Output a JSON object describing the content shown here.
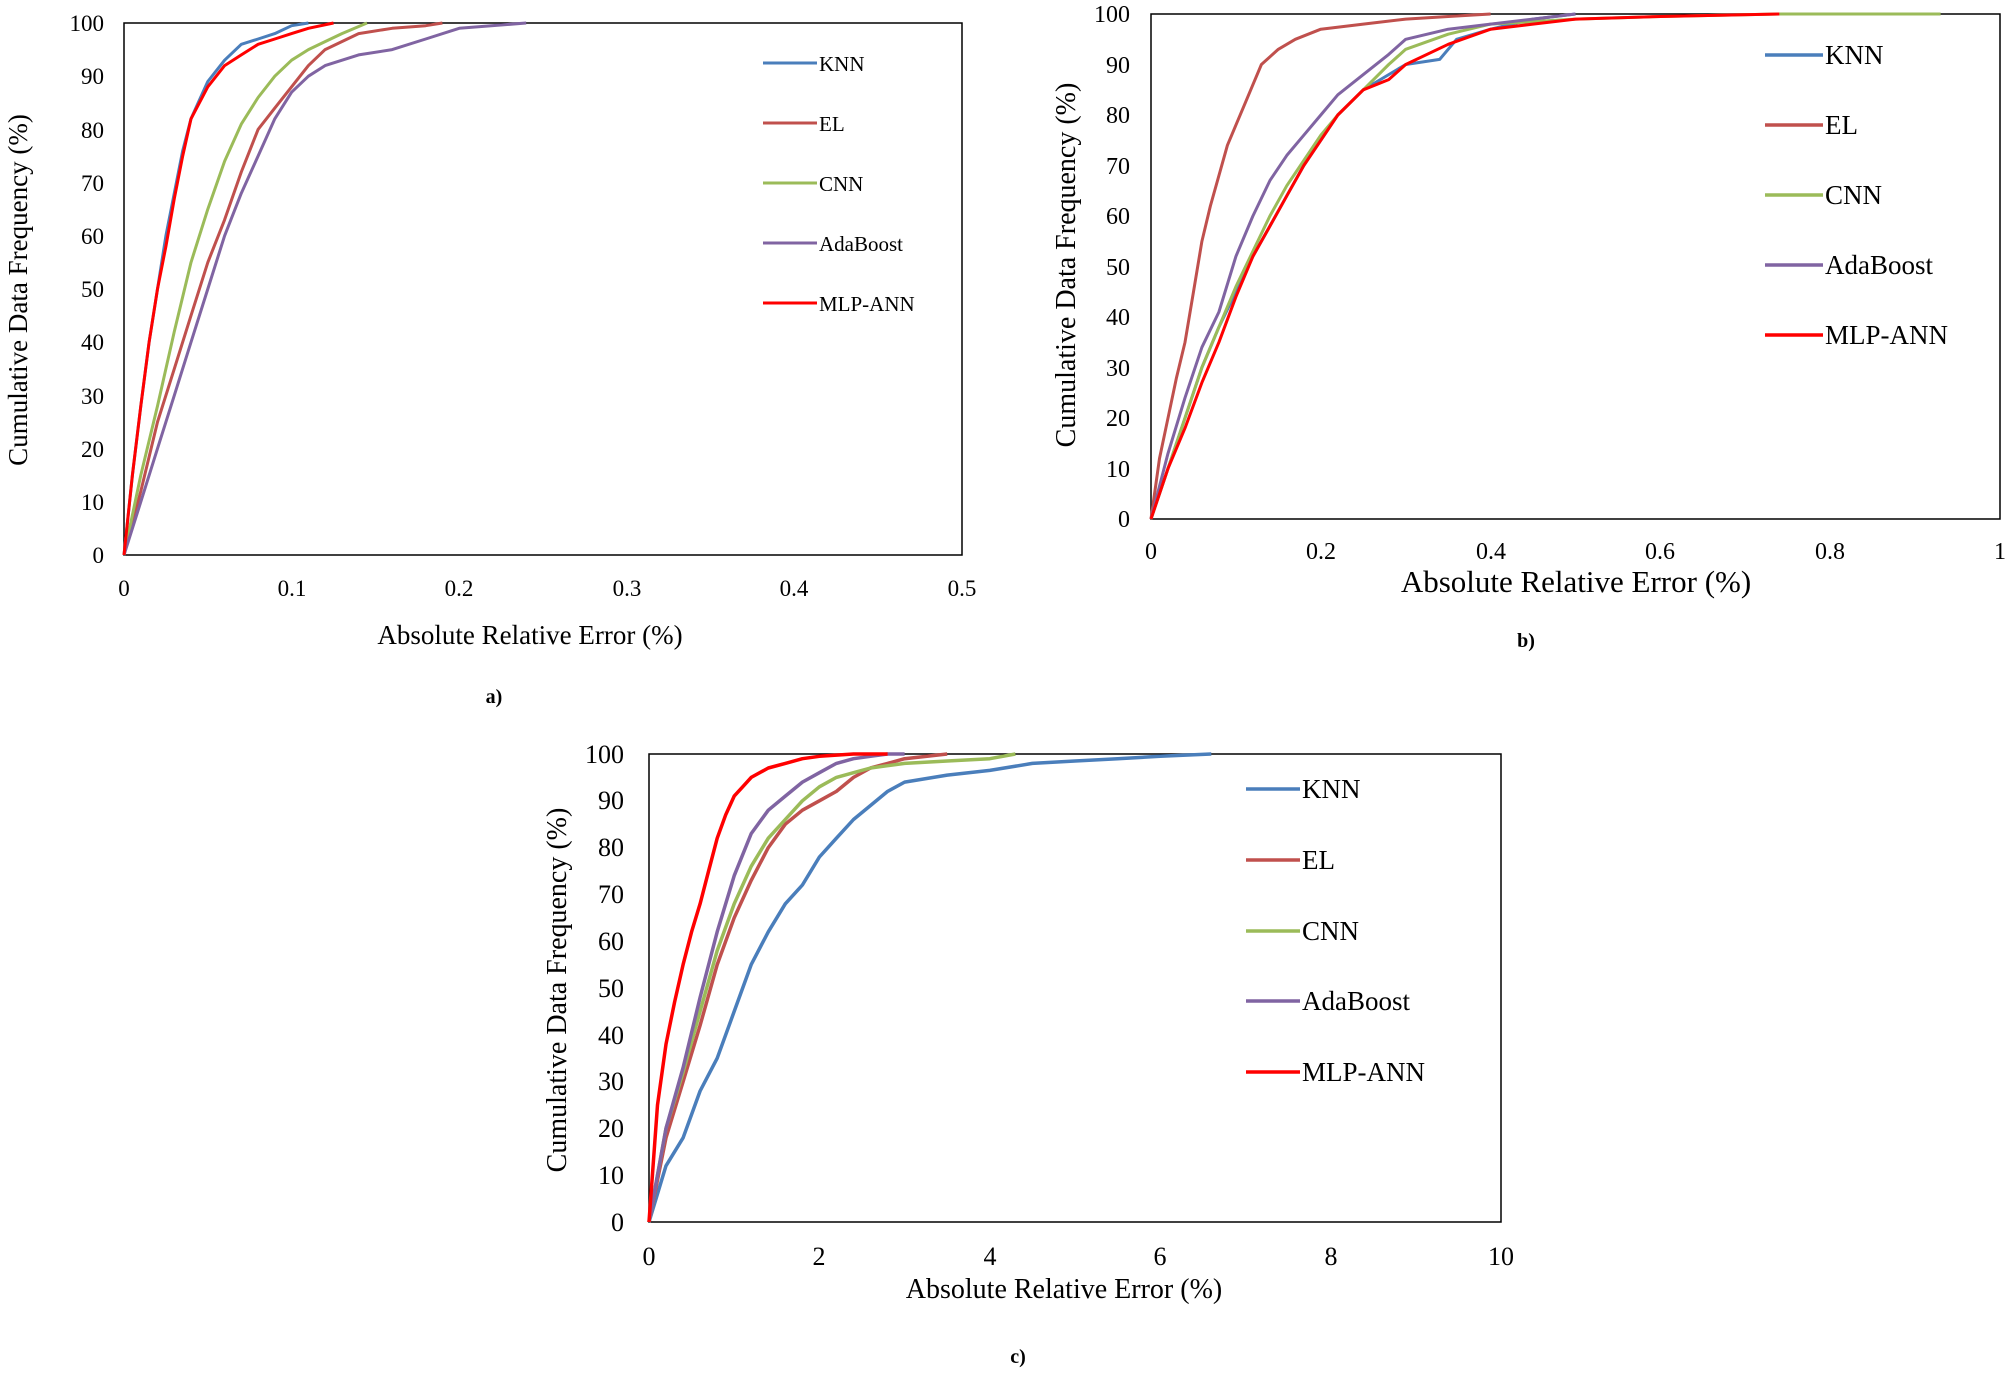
{
  "colors": {
    "KNN": "#4a7ebb",
    "EL": "#c0504d",
    "CNN": "#9bbb59",
    "AdaBoost": "#8064a2",
    "MLP-ANN": "#ff0000"
  },
  "chart_data": [
    {
      "id": "a",
      "type": "line",
      "panel_label": "a)",
      "title": "",
      "xlabel": "Absolute Relative Error (%)",
      "ylabel": "Cumulative Data Frequency (%)",
      "xlim": [
        0,
        0.5
      ],
      "ylim": [
        0,
        100
      ],
      "x_ticks": [
        "0",
        "0.1",
        "0.2",
        "0.3",
        "0.4",
        "0.5"
      ],
      "y_ticks": [
        "0",
        "10",
        "20",
        "30",
        "40",
        "50",
        "60",
        "70",
        "80",
        "90",
        "100"
      ],
      "legend": [
        "KNN",
        "EL",
        "CNN",
        "AdaBoost",
        "MLP-ANN"
      ],
      "series": [
        {
          "name": "KNN",
          "x": [
            0,
            0.005,
            0.01,
            0.015,
            0.02,
            0.025,
            0.03,
            0.035,
            0.04,
            0.05,
            0.06,
            0.07,
            0.08,
            0.09,
            0.1,
            0.11
          ],
          "y": [
            0,
            15,
            28,
            40,
            50,
            60,
            68,
            76,
            82,
            89,
            93,
            96,
            97,
            98,
            99.5,
            100
          ]
        },
        {
          "name": "EL",
          "x": [
            0,
            0.01,
            0.02,
            0.03,
            0.04,
            0.05,
            0.06,
            0.07,
            0.08,
            0.09,
            0.1,
            0.11,
            0.12,
            0.14,
            0.16,
            0.18,
            0.19
          ],
          "y": [
            0,
            12,
            25,
            35,
            45,
            55,
            63,
            72,
            80,
            84,
            88,
            92,
            95,
            98,
            99,
            99.5,
            100
          ]
        },
        {
          "name": "CNN",
          "x": [
            0,
            0.01,
            0.02,
            0.03,
            0.04,
            0.05,
            0.06,
            0.07,
            0.08,
            0.09,
            0.1,
            0.11,
            0.12,
            0.13,
            0.145
          ],
          "y": [
            0,
            15,
            28,
            42,
            55,
            65,
            74,
            81,
            86,
            90,
            93,
            95,
            96.5,
            98,
            100
          ]
        },
        {
          "name": "AdaBoost",
          "x": [
            0,
            0.01,
            0.02,
            0.03,
            0.04,
            0.05,
            0.06,
            0.07,
            0.08,
            0.09,
            0.1,
            0.11,
            0.12,
            0.14,
            0.16,
            0.18,
            0.2,
            0.24
          ],
          "y": [
            0,
            10,
            20,
            30,
            40,
            50,
            60,
            68,
            75,
            82,
            87,
            90,
            92,
            94,
            95,
            97,
            99,
            100
          ]
        },
        {
          "name": "MLP-ANN",
          "x": [
            0,
            0.005,
            0.01,
            0.015,
            0.02,
            0.025,
            0.03,
            0.035,
            0.04,
            0.05,
            0.06,
            0.07,
            0.08,
            0.09,
            0.1,
            0.11,
            0.125
          ],
          "y": [
            0,
            15,
            28,
            40,
            50,
            58,
            67,
            75,
            82,
            88,
            92,
            94,
            96,
            97,
            98,
            99,
            100
          ]
        }
      ]
    },
    {
      "id": "b",
      "type": "line",
      "panel_label": "b)",
      "title": "",
      "xlabel": "Absolute Relative Error (%)",
      "ylabel": "Cumulative Data Frequency (%)",
      "xlim": [
        0,
        1
      ],
      "ylim": [
        0,
        100
      ],
      "x_ticks": [
        "0",
        "0.2",
        "0.4",
        "0.6",
        "0.8",
        "1"
      ],
      "y_ticks": [
        "0",
        "10",
        "20",
        "30",
        "40",
        "50",
        "60",
        "70",
        "80",
        "90",
        "100"
      ],
      "legend": [
        "KNN",
        "EL",
        "CNN",
        "AdaBoost",
        "MLP-ANN"
      ],
      "series": [
        {
          "name": "KNN",
          "x": [
            0,
            0.02,
            0.04,
            0.06,
            0.08,
            0.1,
            0.12,
            0.14,
            0.16,
            0.18,
            0.2,
            0.22,
            0.25,
            0.28,
            0.3,
            0.34,
            0.36,
            0.4,
            0.45,
            0.5
          ],
          "y": [
            0,
            10,
            20,
            30,
            38,
            45,
            52,
            58,
            64,
            70,
            75,
            80,
            85,
            88,
            90,
            91,
            95,
            97,
            99,
            100
          ]
        },
        {
          "name": "EL",
          "x": [
            0,
            0.01,
            0.02,
            0.03,
            0.04,
            0.05,
            0.06,
            0.07,
            0.08,
            0.09,
            0.1,
            0.11,
            0.12,
            0.13,
            0.15,
            0.17,
            0.2,
            0.25,
            0.3,
            0.35,
            0.4
          ],
          "y": [
            0,
            12,
            20,
            28,
            35,
            45,
            55,
            62,
            68,
            74,
            78,
            82,
            86,
            90,
            93,
            95,
            97,
            98,
            99,
            99.5,
            100
          ]
        },
        {
          "name": "CNN",
          "x": [
            0,
            0.02,
            0.04,
            0.06,
            0.08,
            0.1,
            0.12,
            0.14,
            0.16,
            0.18,
            0.2,
            0.22,
            0.25,
            0.28,
            0.3,
            0.35,
            0.4,
            0.5,
            0.6,
            0.74,
            0.93
          ],
          "y": [
            0,
            10,
            20,
            30,
            38,
            46,
            53,
            60,
            66,
            71,
            76,
            80,
            85,
            90,
            93,
            96,
            98,
            99,
            99.5,
            100,
            100
          ]
        },
        {
          "name": "AdaBoost",
          "x": [
            0,
            0.02,
            0.04,
            0.06,
            0.08,
            0.1,
            0.12,
            0.14,
            0.16,
            0.18,
            0.2,
            0.22,
            0.25,
            0.28,
            0.3,
            0.35,
            0.4,
            0.45,
            0.5
          ],
          "y": [
            0,
            13,
            24,
            34,
            41,
            52,
            60,
            67,
            72,
            76,
            80,
            84,
            88,
            92,
            95,
            97,
            98,
            99,
            100
          ]
        },
        {
          "name": "MLP-ANN",
          "x": [
            0,
            0.02,
            0.04,
            0.06,
            0.08,
            0.1,
            0.12,
            0.14,
            0.16,
            0.18,
            0.2,
            0.22,
            0.25,
            0.28,
            0.3,
            0.35,
            0.4,
            0.45,
            0.5,
            0.6,
            0.74
          ],
          "y": [
            0,
            10,
            18,
            27,
            35,
            44,
            52,
            58,
            64,
            70,
            75,
            80,
            85,
            87,
            90,
            94,
            97,
            98,
            99,
            99.5,
            100
          ]
        }
      ]
    },
    {
      "id": "c",
      "type": "line",
      "panel_label": "c)",
      "title": "",
      "xlabel": "Absolute Relative Error (%)",
      "ylabel": "Cumulative Data Frequency (%)",
      "xlim": [
        0,
        10
      ],
      "ylim": [
        0,
        100
      ],
      "x_ticks": [
        "0",
        "2",
        "4",
        "6",
        "8",
        "10"
      ],
      "y_ticks": [
        "0",
        "10",
        "20",
        "30",
        "40",
        "50",
        "60",
        "70",
        "80",
        "90",
        "100"
      ],
      "legend": [
        "KNN",
        "EL",
        "CNN",
        "AdaBoost",
        "MLP-ANN"
      ],
      "series": [
        {
          "name": "KNN",
          "x": [
            0,
            0.2,
            0.4,
            0.6,
            0.8,
            1,
            1.2,
            1.4,
            1.6,
            1.8,
            2,
            2.2,
            2.4,
            2.6,
            2.8,
            3,
            3.5,
            4,
            4.5,
            5,
            5.5,
            6,
            6.6
          ],
          "y": [
            0,
            12,
            18,
            28,
            35,
            45,
            55,
            62,
            68,
            72,
            78,
            82,
            86,
            89,
            92,
            94,
            95.5,
            96.5,
            98,
            98.5,
            99,
            99.5,
            100
          ]
        },
        {
          "name": "EL",
          "x": [
            0,
            0.2,
            0.4,
            0.6,
            0.8,
            1,
            1.2,
            1.4,
            1.6,
            1.8,
            2,
            2.2,
            2.4,
            2.6,
            2.8,
            3,
            3.5
          ],
          "y": [
            0,
            18,
            30,
            42,
            55,
            65,
            73,
            80,
            85,
            88,
            90,
            92,
            95,
            97,
            98,
            99,
            100
          ]
        },
        {
          "name": "CNN",
          "x": [
            0,
            0.2,
            0.4,
            0.6,
            0.8,
            1,
            1.2,
            1.4,
            1.6,
            1.8,
            2,
            2.2,
            2.4,
            2.6,
            2.8,
            3,
            3.5,
            4,
            4.3
          ],
          "y": [
            0,
            20,
            32,
            45,
            58,
            68,
            76,
            82,
            86,
            90,
            93,
            95,
            96,
            97,
            97.5,
            98,
            98.5,
            99,
            100
          ]
        },
        {
          "name": "AdaBoost",
          "x": [
            0,
            0.2,
            0.4,
            0.6,
            0.8,
            1,
            1.2,
            1.4,
            1.6,
            1.8,
            2,
            2.2,
            2.4,
            2.6,
            2.8,
            3
          ],
          "y": [
            0,
            20,
            33,
            48,
            62,
            74,
            83,
            88,
            91,
            94,
            96,
            98,
            99,
            99.5,
            100,
            100
          ]
        },
        {
          "name": "MLP-ANN",
          "x": [
            0,
            0.1,
            0.2,
            0.3,
            0.4,
            0.5,
            0.6,
            0.7,
            0.8,
            0.9,
            1,
            1.1,
            1.2,
            1.4,
            1.6,
            1.8,
            2,
            2.4,
            2.8
          ],
          "y": [
            0,
            25,
            38,
            47,
            55,
            62,
            68,
            75,
            82,
            87,
            91,
            93,
            95,
            97,
            98,
            99,
            99.5,
            100,
            100
          ]
        }
      ]
    }
  ]
}
